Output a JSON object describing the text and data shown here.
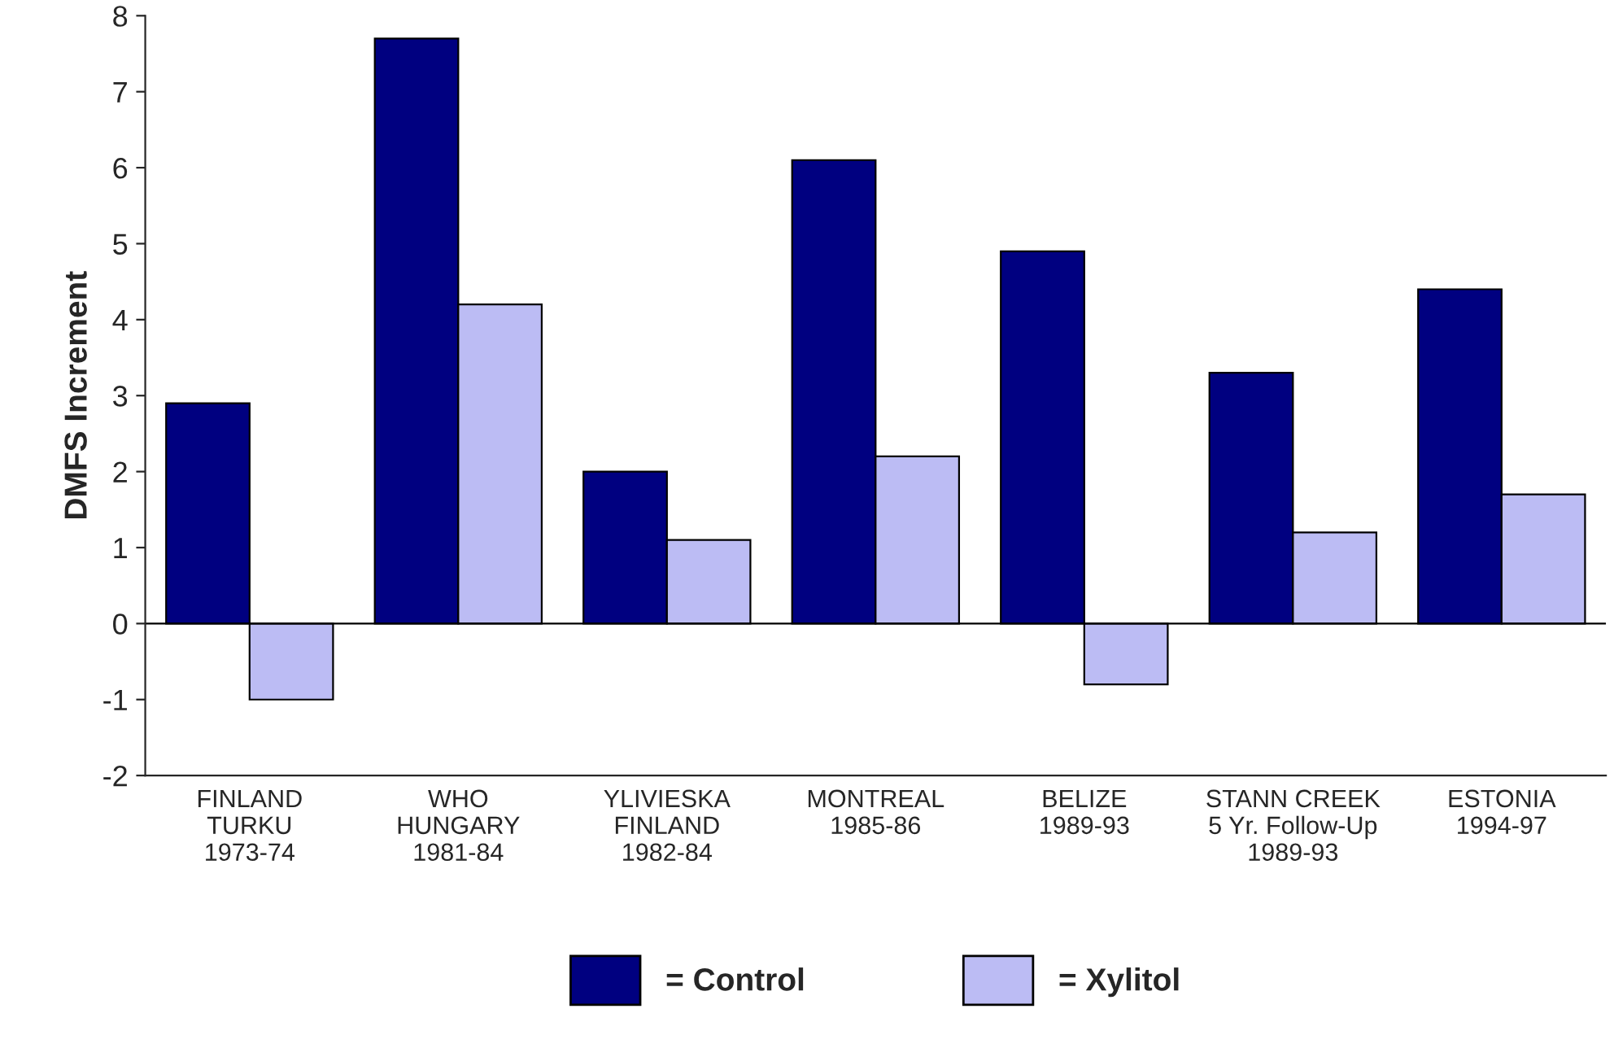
{
  "chart_data": {
    "type": "bar",
    "ylabel": "DMFS Increment",
    "categories": [
      "FINLAND\nTURKU\n1973-74",
      "WHO\nHUNGARY\n1981-84",
      "YLIVIESKA\nFINLAND\n1982-84",
      "MONTREAL\n1985-86",
      "BELIZE\n1989-93",
      "STANN CREEK\n5 Yr. Follow-Up\n1989-93",
      "ESTONIA\n1994-97"
    ],
    "series": [
      {
        "name": "= Control",
        "color": "#000080",
        "values": [
          2.9,
          7.7,
          2.0,
          6.1,
          4.9,
          3.3,
          4.4
        ]
      },
      {
        "name": "= Xylitol",
        "color": "#bcbcf4",
        "values": [
          -1.0,
          4.2,
          1.1,
          2.2,
          -0.8,
          1.2,
          1.7
        ]
      }
    ],
    "ylim": [
      -2,
      8
    ],
    "yticks": [
      -2,
      -1,
      0,
      1,
      2,
      3,
      4,
      5,
      6,
      7,
      8
    ],
    "ref_lines": [
      {
        "axis": "y",
        "value": 0,
        "color": "#000000"
      }
    ],
    "grid": false,
    "legend": "bottom"
  }
}
